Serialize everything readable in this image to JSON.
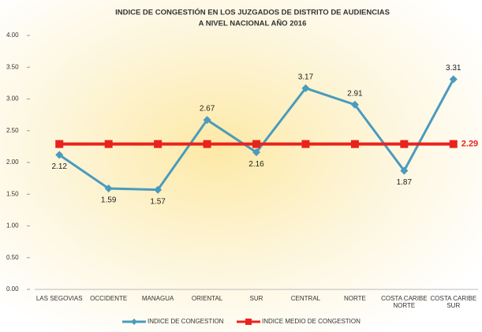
{
  "chart_data": {
    "type": "line",
    "title": [
      "INDICE DE CONGESTIÓN EN LOS JUZGADOS DE DISTRITO DE AUDIENCIAS",
      "A NIVEL NACIONAL AÑO 2016"
    ],
    "categories": [
      "LAS SEGOVIAS",
      "OCCIDENTE",
      "MANAGUA",
      "ORIENTAL",
      "SUR",
      "CENTRAL",
      "NORTE",
      "COSTA CARIBE NORTE",
      "COSTA CARIBE SUR"
    ],
    "series": [
      {
        "name": "INDICE DE CONGESTION",
        "color": "#4a9bbd",
        "marker": "diamond",
        "values": [
          2.12,
          1.59,
          1.57,
          2.67,
          2.16,
          3.17,
          2.91,
          1.87,
          3.31
        ]
      },
      {
        "name": "INDICE MEDIO DE CONGESTION",
        "color": "#e8231c",
        "marker": "square",
        "values": [
          2.29,
          2.29,
          2.29,
          2.29,
          2.29,
          2.29,
          2.29,
          2.29,
          2.29
        ]
      }
    ],
    "ylim": [
      0,
      4
    ],
    "yticks": [
      {
        "value": 0,
        "label": "0.00"
      },
      {
        "value": 0.5,
        "label": "0.50"
      },
      {
        "value": 1,
        "label": "1.00"
      },
      {
        "value": 1.5,
        "label": "1.50"
      },
      {
        "value": 2,
        "label": "2.00"
      },
      {
        "value": 2.5,
        "label": "2.50"
      },
      {
        "value": 3,
        "label": "3.00"
      },
      {
        "value": 3.5,
        "label": "3.50"
      },
      {
        "value": 4,
        "label": "4.00"
      }
    ],
    "legend": "bottom"
  }
}
